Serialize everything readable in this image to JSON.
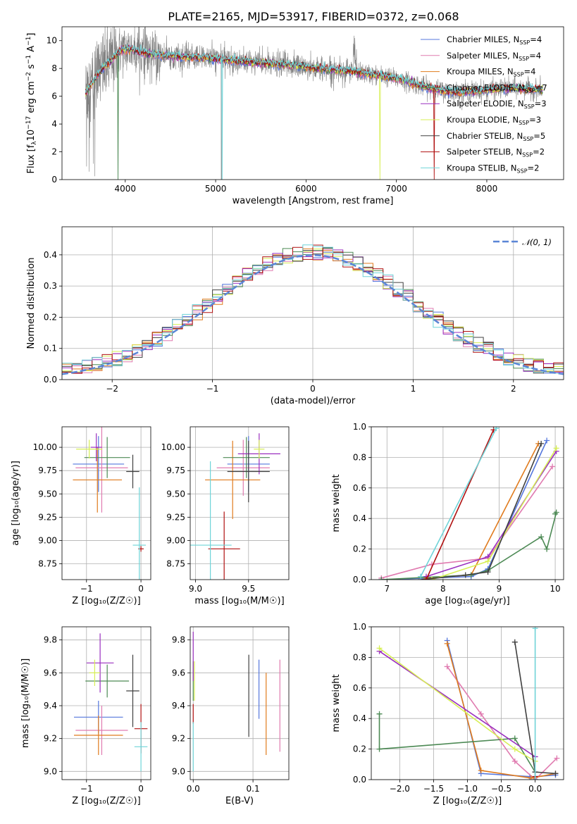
{
  "figure": {
    "title": "PLATE=2165, MJD=53917, FIBERID=0372, z=0.068",
    "colors": {
      "chabrier_miles": "#5577dd",
      "salpeter_miles": "#e07bb0",
      "kroupa_miles": "#e07b1d",
      "chabrier_elodie": "#4d8a55",
      "salpeter_elodie": "#9a2fbf",
      "kroupa_elodie": "#d7ef55",
      "chabrier_stelib": "#404040",
      "salpeter_stelib": "#b01010",
      "kroupa_stelib": "#6fd4d8",
      "data": "#808080"
    }
  },
  "chart_data": [
    {
      "panel": "spectrum",
      "type": "line",
      "xlabel": "wavelength [Angstrom, rest frame]",
      "ylabel_main": "Flux [f",
      "ylabel_sub": "λ",
      "ylabel_rest": "10",
      "ylabel_sup1": "−17",
      "ylabel_mid": " erg cm",
      "ylabel_sup2": "−2",
      "ylabel_mid2": " s",
      "ylabel_sup3": "−1",
      "ylabel_mid3": " A",
      "ylabel_sup4": "−1",
      "ylabel_end": "]",
      "xlim": [
        3300,
        8850
      ],
      "ylim": [
        0,
        11
      ],
      "xticks": [
        "4000",
        "5000",
        "6000",
        "7000",
        "8000"
      ],
      "xtick_values": [
        4000,
        5000,
        6000,
        7000,
        8000
      ],
      "yticks": [
        "0",
        "2",
        "4",
        "6",
        "8",
        "10"
      ],
      "ytick_values": [
        0,
        2,
        4,
        6,
        8,
        10
      ],
      "continuum": {
        "x": [
          3560,
          3650,
          3750,
          3850,
          3950,
          4050,
          4150,
          4300,
          4500,
          4700,
          4900,
          5100,
          5300,
          5500,
          5700,
          5900,
          6100,
          6300,
          6500,
          6700,
          6900,
          7100,
          7300,
          7500,
          7700,
          7900,
          8100,
          8300,
          8500,
          8620
        ],
        "y": [
          6.2,
          7.1,
          8.0,
          8.6,
          9.3,
          9.4,
          9.2,
          9.0,
          8.9,
          8.8,
          8.8,
          8.6,
          8.5,
          8.4,
          8.3,
          8.2,
          8.0,
          7.9,
          7.8,
          7.6,
          7.4,
          7.1,
          6.7,
          6.4,
          6.3,
          6.4,
          6.5,
          6.6,
          6.5,
          6.5
        ]
      },
      "legend": [
        {
          "main": "Chabrier MILES, N",
          "sub": "SSP",
          "end": "=4",
          "color_key": "chabrier_miles"
        },
        {
          "main": "Salpeter MILES, N",
          "sub": "SSP",
          "end": "=4",
          "color_key": "salpeter_miles"
        },
        {
          "main": "Kroupa MILES, N",
          "sub": "SSP",
          "end": "=4",
          "color_key": "kroupa_miles"
        },
        {
          "main": "Chabrier ELODIE, N",
          "sub": "SSP",
          "end": "=7",
          "color_key": "chabrier_elodie"
        },
        {
          "main": "Salpeter ELODIE, N",
          "sub": "SSP",
          "end": "=3",
          "color_key": "salpeter_elodie"
        },
        {
          "main": "Kroupa ELODIE, N",
          "sub": "SSP",
          "end": "=3",
          "color_key": "kroupa_elodie"
        },
        {
          "main": "Chabrier STELIB, N",
          "sub": "SSP",
          "end": "=5",
          "color_key": "chabrier_stelib"
        },
        {
          "main": "Salpeter STELIB, N",
          "sub": "SSP",
          "end": "=2",
          "color_key": "salpeter_stelib"
        },
        {
          "main": "Kroupa STELIB, N",
          "sub": "SSP",
          "end": "=2",
          "color_key": "kroupa_stelib"
        }
      ]
    },
    {
      "panel": "residuals",
      "type": "line",
      "xlabel": "(data-model)/error",
      "ylabel": "Normed distribution",
      "xlim": [
        -2.5,
        2.5
      ],
      "ylim": [
        0,
        0.49
      ],
      "xticks": [
        "−2",
        "−1",
        "0",
        "1",
        "2"
      ],
      "xtick_values": [
        -2,
        -1,
        0,
        1,
        2
      ],
      "yticks": [
        "0.0",
        "0.1",
        "0.2",
        "0.3",
        "0.4"
      ],
      "ytick_values": [
        0,
        0.1,
        0.2,
        0.3,
        0.4
      ],
      "grid": true,
      "legend_label": "𝒩(0, 1)",
      "legend_position": "top-right",
      "gaussian": {
        "mean": 0,
        "sigma": 1
      }
    },
    {
      "panel": "age-vs-Z",
      "type": "scatter",
      "xlabel": "Z [log₁₀(Z/Z☉)]",
      "ylabel": "age  [log₁₀(age/yr)]",
      "xlim": [
        -1.45,
        0.18
      ],
      "ylim": [
        8.58,
        10.22
      ],
      "xticks": [
        "−1",
        "0"
      ],
      "xtick_values": [
        -1,
        0
      ],
      "yticks": [
        "8.75",
        "9.00",
        "9.25",
        "9.50",
        "9.75",
        "10.00"
      ],
      "ytick_values": [
        8.75,
        9.0,
        9.25,
        9.5,
        9.75,
        10.0
      ],
      "points": [
        {
          "c": "chabrier_miles",
          "x": -0.78,
          "xerr": 0.47,
          "y": 9.82,
          "yerr": 0.3
        },
        {
          "c": "salpeter_miles",
          "x": -0.72,
          "xerr": 0.48,
          "y": 9.78,
          "yerr": 0.48
        },
        {
          "c": "kroupa_miles",
          "x": -0.8,
          "xerr": 0.45,
          "y": 9.65,
          "yerr": 0.35
        },
        {
          "c": "chabrier_elodie",
          "x": -0.62,
          "xerr": 0.42,
          "y": 9.89,
          "yerr": 0.22
        },
        {
          "c": "salpeter_elodie",
          "x": -0.82,
          "xerr": 0.1,
          "y": 10.0,
          "yerr": 0.15
        },
        {
          "c": "kroupa_elodie",
          "x": -0.95,
          "xerr": 0.24,
          "y": 9.98,
          "yerr": 0.1
        },
        {
          "c": "chabrier_stelib",
          "x": -0.15,
          "xerr": 0.12,
          "y": 9.74,
          "yerr": 0.18
        },
        {
          "c": "salpeter_stelib",
          "x": 0.0,
          "xerr": 0.05,
          "y": 8.91,
          "yerr": 0.03
        },
        {
          "c": "kroupa_stelib",
          "x": -0.03,
          "xerr": 0.12,
          "y": 8.95,
          "yerr": 0.62
        }
      ]
    },
    {
      "panel": "age-vs-mass",
      "type": "scatter",
      "xlabel": "mass [log₁₀(M/M☉)]",
      "xlim": [
        8.95,
        9.88
      ],
      "ylim": [
        8.58,
        10.22
      ],
      "xticks": [
        "9.0",
        "9.5"
      ],
      "xtick_values": [
        9.0,
        9.5
      ],
      "yticks": [
        "8.75",
        "9.00",
        "9.25",
        "9.50",
        "9.75",
        "10.00"
      ],
      "ytick_values": [
        8.75,
        9.0,
        9.25,
        9.5,
        9.75,
        10.0
      ],
      "points": [
        {
          "c": "chabrier_miles",
          "x": 9.5,
          "xerr": 0.2,
          "y": 9.82,
          "yerr": 0.3
        },
        {
          "c": "salpeter_miles",
          "x": 9.45,
          "xerr": 0.25,
          "y": 9.78,
          "yerr": 0.3
        },
        {
          "c": "kroupa_miles",
          "x": 9.35,
          "xerr": 0.26,
          "y": 9.65,
          "yerr": 0.42
        },
        {
          "c": "chabrier_elodie",
          "x": 9.48,
          "xerr": 0.22,
          "y": 9.89,
          "yerr": 0.22
        },
        {
          "c": "salpeter_elodie",
          "x": 9.6,
          "xerr": 0.2,
          "y": 9.93,
          "yerr": 0.22
        },
        {
          "c": "kroupa_elodie",
          "x": 9.6,
          "xerr": 0.05,
          "y": 9.98,
          "yerr": 0.1
        },
        {
          "c": "chabrier_stelib",
          "x": 9.5,
          "xerr": 0.2,
          "y": 9.74,
          "yerr": 0.33
        },
        {
          "c": "salpeter_stelib",
          "x": 9.27,
          "xerr": 0.15,
          "y": 8.91,
          "yerr": 0.4
        },
        {
          "c": "kroupa_stelib",
          "x": 9.14,
          "xerr": 0.2,
          "y": 8.95,
          "yerr": 0.9
        }
      ]
    },
    {
      "panel": "mass-weight-vs-age",
      "type": "line",
      "xlabel": "age  [log₁₀(age/yr)]",
      "ylabel": "mass weight",
      "xlim": [
        6.72,
        10.15
      ],
      "ylim": [
        0,
        1
      ],
      "xticks": [
        "7",
        "8",
        "9",
        "10"
      ],
      "xtick_values": [
        7,
        8,
        9,
        10
      ],
      "yticks": [
        "0.0",
        "0.2",
        "0.4",
        "0.6",
        "0.8",
        "1.0"
      ],
      "ytick_values": [
        0,
        0.2,
        0.4,
        0.6,
        0.8,
        1.0
      ],
      "series": [
        {
          "c": "chabrier_miles",
          "x": [
            6.9,
            8.5,
            8.8,
            9.85
          ],
          "y": [
            0.0,
            0.02,
            0.07,
            0.91
          ]
        },
        {
          "c": "salpeter_miles",
          "x": [
            6.9,
            7.8,
            8.8,
            9.95
          ],
          "y": [
            0.01,
            0.1,
            0.14,
            0.74
          ]
        },
        {
          "c": "kroupa_miles",
          "x": [
            7.7,
            8.5,
            9.7
          ],
          "y": [
            0.01,
            0.03,
            0.89
          ]
        },
        {
          "c": "chabrier_elodie",
          "x": [
            6.9,
            8.5,
            8.8,
            9.75,
            9.85,
            10.02,
            10.0
          ],
          "y": [
            0.0,
            0.03,
            0.06,
            0.28,
            0.2,
            0.44,
            0.43
          ]
        },
        {
          "c": "salpeter_elodie",
          "x": [
            7.7,
            8.8,
            10.02
          ],
          "y": [
            0.02,
            0.15,
            0.84
          ]
        },
        {
          "c": "kroupa_elodie",
          "x": [
            7.8,
            8.8,
            10.02
          ],
          "y": [
            0.0,
            0.12,
            0.86
          ]
        },
        {
          "c": "chabrier_stelib",
          "x": [
            7.6,
            8.4,
            8.8,
            9.75
          ],
          "y": [
            0.0,
            0.03,
            0.05,
            0.89
          ]
        },
        {
          "c": "salpeter_stelib",
          "x": [
            7.7,
            8.9
          ],
          "y": [
            0.0,
            0.98
          ]
        },
        {
          "c": "kroupa_stelib",
          "x": [
            7.6,
            8.95
          ],
          "y": [
            0.02,
            0.99
          ]
        }
      ]
    },
    {
      "panel": "mass-vs-Z",
      "type": "scatter",
      "xlabel": "Z [log₁₀(Z/Z☉)]",
      "ylabel": "mass [log₁₀(M/M☉)]",
      "xlim": [
        -1.45,
        0.18
      ],
      "ylim": [
        8.95,
        9.88
      ],
      "xticks": [
        "−1",
        "0"
      ],
      "xtick_values": [
        -1,
        0
      ],
      "yticks": [
        "9.0",
        "9.2",
        "9.4",
        "9.6",
        "9.8"
      ],
      "ytick_values": [
        9.0,
        9.2,
        9.4,
        9.6,
        9.8
      ],
      "points": [
        {
          "c": "chabrier_miles",
          "x": -0.78,
          "xerr": 0.45,
          "y": 9.33,
          "yerr": 0.1
        },
        {
          "c": "salpeter_miles",
          "x": -0.72,
          "xerr": 0.48,
          "y": 9.25,
          "yerr": 0.15
        },
        {
          "c": "kroupa_miles",
          "x": -0.78,
          "xerr": 0.45,
          "y": 9.22,
          "yerr": 0.12
        },
        {
          "c": "chabrier_elodie",
          "x": -0.62,
          "xerr": 0.4,
          "y": 9.55,
          "yerr": 0.1
        },
        {
          "c": "salpeter_elodie",
          "x": -0.75,
          "xerr": 0.25,
          "y": 9.66,
          "yerr": 0.18
        },
        {
          "c": "kroupa_elodie",
          "x": -0.85,
          "xerr": 0.1,
          "y": 9.6,
          "yerr": 0.08
        },
        {
          "c": "chabrier_stelib",
          "x": -0.15,
          "xerr": 0.12,
          "y": 9.49,
          "yerr": 0.22
        },
        {
          "c": "salpeter_stelib",
          "x": 0.0,
          "xerr": 0.12,
          "y": 9.26,
          "yerr": 0.15
        },
        {
          "c": "kroupa_stelib",
          "x": 0.0,
          "xerr": 0.12,
          "y": 9.15,
          "yerr": 0.15
        }
      ]
    },
    {
      "panel": "mass-vs-ebv",
      "type": "scatter",
      "xlabel": "E(B-V)",
      "xlim": [
        -0.005,
        0.16
      ],
      "ylim": [
        8.95,
        9.88
      ],
      "xticks": [
        "0.0",
        "0.1"
      ],
      "xtick_values": [
        0.0,
        0.1
      ],
      "yticks": [
        "9.0",
        "9.2",
        "9.4",
        "9.6",
        "9.8"
      ],
      "ytick_values": [
        9.0,
        9.2,
        9.4,
        9.6,
        9.8
      ],
      "points": [
        {
          "c": "chabrier_miles",
          "x": 0.11,
          "y": 9.5,
          "yerr": 0.18
        },
        {
          "c": "salpeter_miles",
          "x": 0.145,
          "y": 9.4,
          "yerr": 0.28
        },
        {
          "c": "kroupa_miles",
          "x": 0.122,
          "y": 9.35,
          "yerr": 0.25
        },
        {
          "c": "chabrier_elodie",
          "x": 0.0,
          "y": 9.55,
          "yerr": 0.12
        },
        {
          "c": "salpeter_elodie",
          "x": 0.0,
          "y": 9.7,
          "yerr": 0.15
        },
        {
          "c": "kroupa_elodie",
          "x": 0.002,
          "y": 9.55,
          "yerr": 0.12
        },
        {
          "c": "chabrier_stelib",
          "x": 0.093,
          "y": 9.46,
          "yerr": 0.25
        },
        {
          "c": "salpeter_stelib",
          "x": 0.0,
          "y": 9.35,
          "yerr": 0.06
        },
        {
          "c": "kroupa_stelib",
          "x": 0.0,
          "y": 9.15,
          "yerr": 0.15
        }
      ]
    },
    {
      "panel": "mass-weight-vs-Z",
      "type": "line",
      "xlabel": "Z [log₁₀(Z/Z☉)]",
      "ylabel": "mass weight",
      "xlim": [
        -2.42,
        0.42
      ],
      "ylim": [
        0,
        1
      ],
      "xticks": [
        "−2.0",
        "−1.5",
        "−1.0",
        "−0.5",
        "0.0"
      ],
      "xtick_values": [
        -2.0,
        -1.5,
        -1.0,
        -0.5,
        0.0
      ],
      "yticks": [
        "0.0",
        "0.2",
        "0.4",
        "0.6",
        "0.8",
        "1.0"
      ],
      "ytick_values": [
        0,
        0.2,
        0.4,
        0.6,
        0.8,
        1.0
      ],
      "series": [
        {
          "c": "chabrier_miles",
          "x": [
            -1.3,
            -0.8,
            -0.08,
            0.0,
            0.3
          ],
          "y": [
            0.91,
            0.04,
            0.02,
            0.02,
            0.03
          ]
        },
        {
          "c": "salpeter_miles",
          "x": [
            -1.3,
            -0.8,
            -0.3,
            0.0,
            0.32
          ],
          "y": [
            0.74,
            0.43,
            0.12,
            0.0,
            0.14
          ]
        },
        {
          "c": "kroupa_miles",
          "x": [
            -1.3,
            -0.8,
            -0.06,
            0.3
          ],
          "y": [
            0.89,
            0.06,
            0.01,
            0.04
          ]
        },
        {
          "c": "chabrier_elodie",
          "x": [
            -2.3,
            -2.3,
            -0.3,
            0.0,
            0.0
          ],
          "y": [
            0.43,
            0.2,
            0.27,
            0.05,
            0.0
          ]
        },
        {
          "c": "salpeter_elodie",
          "x": [
            -2.3,
            0.0
          ],
          "y": [
            0.84,
            0.15
          ]
        },
        {
          "c": "kroupa_elodie",
          "x": [
            -2.3,
            -0.3,
            0.0
          ],
          "y": [
            0.86,
            0.2,
            0.12
          ]
        },
        {
          "c": "chabrier_stelib",
          "x": [
            -0.3,
            0.0,
            0.0,
            0.3
          ],
          "y": [
            0.9,
            0.05,
            0.05,
            0.04
          ]
        },
        {
          "c": "salpeter_stelib",
          "x": [
            0.0,
            0.0
          ],
          "y": [
            0.0,
            0.02
          ]
        },
        {
          "c": "kroupa_stelib",
          "x": [
            0.0,
            0.0
          ],
          "y": [
            0.99,
            0.0
          ]
        }
      ]
    }
  ]
}
